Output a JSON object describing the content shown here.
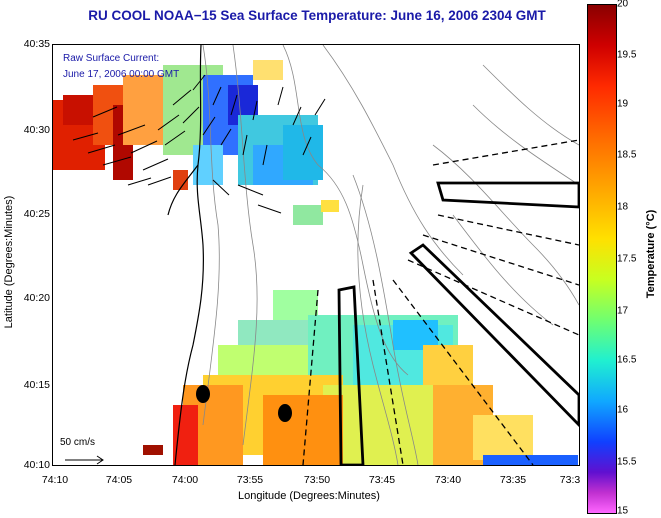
{
  "title": "RU COOL  NOAA−15  Sea Surface Temperature:  June 16, 2006 2304 GMT",
  "overlay_note": {
    "line1": "Raw Surface Current:",
    "line2": "June 17, 2006 00:00 GMT"
  },
  "axes": {
    "x_title": "Longitude (Degrees:Minutes)",
    "y_title": "Latitude (Degrees:Minutes)",
    "x_ticks": [
      "74:10",
      "74:05",
      "74:00",
      "73:55",
      "73:50",
      "73:45",
      "73:40",
      "73:35",
      "73:3"
    ],
    "y_ticks": [
      "40:35",
      "40:30",
      "40:25",
      "40:20",
      "40:15",
      "40:10"
    ]
  },
  "colorbar": {
    "title": "Temperature (°C)",
    "ticks": [
      "20",
      "19.5",
      "19",
      "18.5",
      "18",
      "17.5",
      "17",
      "16.5",
      "16",
      "15.5",
      "15"
    ]
  },
  "scale_label": "50 cm/s",
  "colors": {
    "title": "#1a1aa8",
    "land": "#ffffff",
    "warm": "#e8a020",
    "cool": "#1040ff"
  }
}
